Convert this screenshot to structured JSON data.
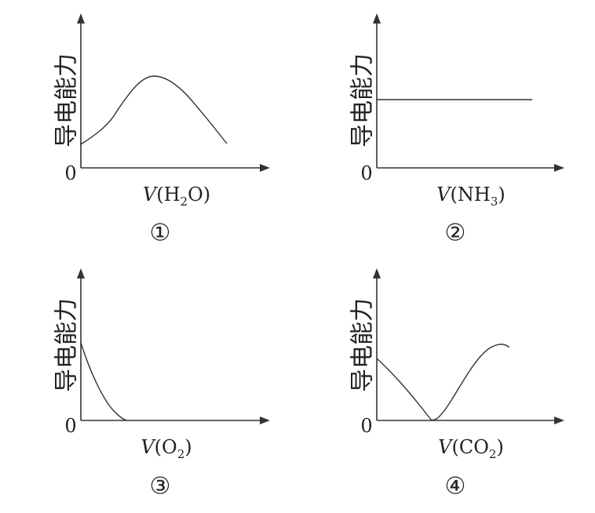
{
  "figure": {
    "background": "#ffffff",
    "line_color": "#333333",
    "panels": [
      {
        "number": "①",
        "y_axis_label": "导电能力",
        "origin_label": "0",
        "x_axis_label": {
          "var": "V",
          "open": "(",
          "formula": "H",
          "sub": "2",
          "rest": "O",
          "close": ")"
        },
        "curve_shape": "rises-then-falls"
      },
      {
        "number": "②",
        "y_axis_label": "导电能力",
        "origin_label": "0",
        "x_axis_label": {
          "var": "V",
          "open": "(",
          "formula": "NH",
          "sub": "3",
          "rest": "",
          "close": ")"
        },
        "curve_shape": "constant"
      },
      {
        "number": "③",
        "y_axis_label": "导电能力",
        "origin_label": "0",
        "x_axis_label": {
          "var": "V",
          "open": "(",
          "formula": "O",
          "sub": "2",
          "rest": "",
          "close": ")"
        },
        "curve_shape": "decreases-to-zero"
      },
      {
        "number": "④",
        "y_axis_label": "导电能力",
        "origin_label": "0",
        "x_axis_label": {
          "var": "V",
          "open": "(",
          "formula": "CO",
          "sub": "2",
          "rest": "",
          "close": ")"
        },
        "curve_shape": "falls-to-zero-then-rises"
      }
    ]
  }
}
